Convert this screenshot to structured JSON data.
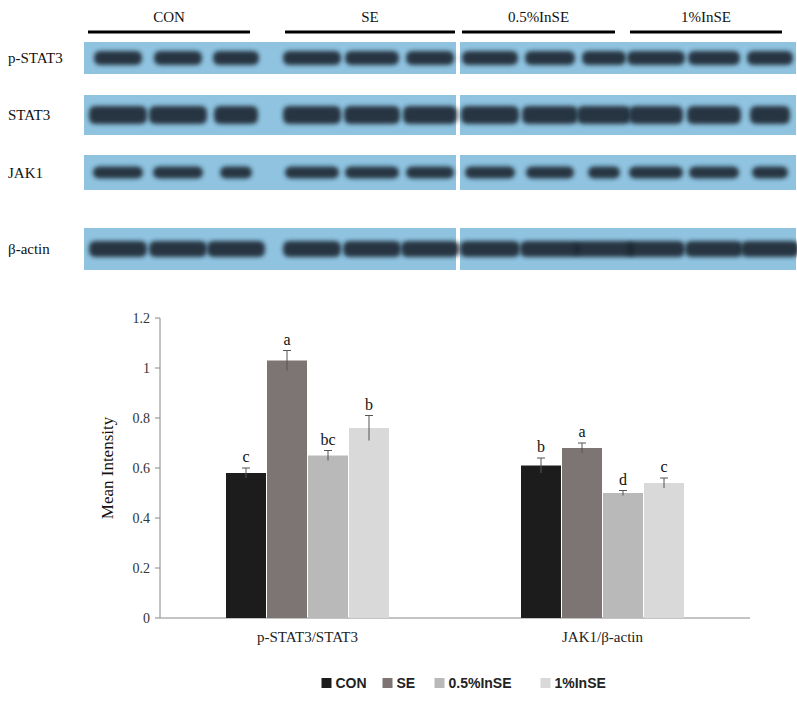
{
  "chart_data": {
    "type": "bar",
    "categories": [
      "p-STAT3/STAT3",
      "JAK1/β-actin"
    ],
    "y_label": "Mean Intensity",
    "ylim": [
      0,
      1.2
    ],
    "yticks": [
      0,
      0.2,
      0.4,
      0.6,
      0.8,
      1,
      1.2
    ],
    "grid": false,
    "legend": "bottom",
    "series": [
      {
        "name": "CON",
        "color": "#1c1c1c",
        "values": [
          0.58,
          0.61
        ],
        "errors": [
          0.02,
          0.03
        ],
        "letters": [
          "c",
          "b"
        ]
      },
      {
        "name": "SE",
        "color": "#7d7474",
        "values": [
          1.03,
          0.68
        ],
        "errors": [
          0.04,
          0.02
        ],
        "letters": [
          "a",
          "a"
        ]
      },
      {
        "name": "0.5%InSE",
        "color": "#b9b9b9",
        "values": [
          0.65,
          0.5
        ],
        "errors": [
          0.02,
          0.01
        ],
        "letters": [
          "bc",
          "d"
        ]
      },
      {
        "name": "1%InSE",
        "color": "#d9d9d9",
        "values": [
          0.76,
          0.54
        ],
        "errors": [
          0.05,
          0.02
        ],
        "letters": [
          "b",
          "c"
        ]
      }
    ]
  },
  "blot": {
    "groups": [
      "CON",
      "SE",
      "0.5%InSE",
      "1%InSE"
    ],
    "rows": [
      "p-STAT3",
      "STAT3",
      "JAK1",
      "β-actin"
    ]
  }
}
